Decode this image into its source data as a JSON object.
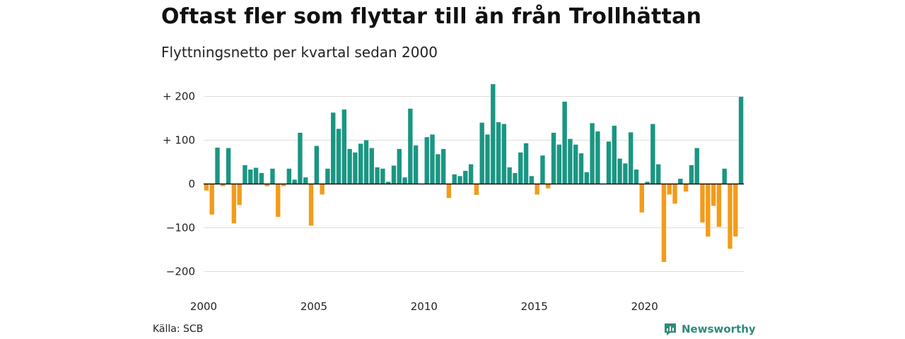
{
  "title": "Oftast fler som flyttar till än från Trollhättan",
  "subtitle": "Flyttningsnetto per kvartal sedan 2000",
  "source": "Källa: SCB",
  "brand": "Newsworthy",
  "colors": {
    "positive": "#1a9683",
    "negative": "#f29c1a",
    "grid": "#dddddd",
    "axis": "#111111"
  },
  "chart_data": {
    "type": "bar",
    "title": "Oftast fler som flyttar till än från Trollhättan",
    "subtitle": "Flyttningsnetto per kvartal sedan 2000",
    "xlabel": "",
    "ylabel": "",
    "ylim": [
      -200,
      230
    ],
    "yticks": [
      {
        "value": 200,
        "label": "+ 200"
      },
      {
        "value": 100,
        "label": "+ 100"
      },
      {
        "value": 0,
        "label": "0"
      },
      {
        "value": -100,
        "label": "−100"
      },
      {
        "value": -200,
        "label": "−200"
      }
    ],
    "xticks": [
      "2000",
      "2005",
      "2010",
      "2015",
      "2020"
    ],
    "grid": true,
    "start_year": 2000,
    "values": [
      -15,
      -70,
      83,
      -5,
      82,
      -90,
      -48,
      43,
      33,
      37,
      25,
      -5,
      35,
      -75,
      -5,
      35,
      10,
      117,
      15,
      -95,
      87,
      -24,
      35,
      163,
      126,
      170,
      80,
      72,
      92,
      100,
      82,
      38,
      35,
      5,
      42,
      80,
      15,
      172,
      88,
      0,
      107,
      113,
      68,
      80,
      -32,
      22,
      18,
      30,
      45,
      -25,
      140,
      113,
      228,
      141,
      137,
      38,
      25,
      72,
      93,
      18,
      -24,
      65,
      -10,
      117,
      90,
      188,
      103,
      90,
      70,
      27,
      139,
      120,
      0,
      97,
      133,
      58,
      47,
      118,
      33,
      -65,
      5,
      137,
      45,
      -178,
      -24,
      -45,
      12,
      -17,
      43,
      82,
      -88,
      -120,
      -50,
      -98,
      35,
      -148,
      -120,
      199
    ]
  }
}
